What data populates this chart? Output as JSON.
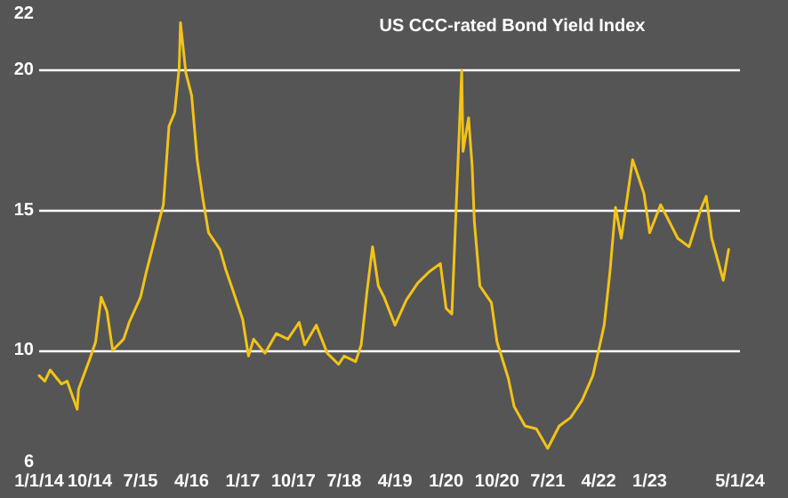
{
  "chart_data": {
    "type": "line",
    "title": "US CCC-rated Bond Yield Index",
    "x": [
      "2014-01",
      "2014-02",
      "2014-03",
      "2014-05",
      "2014-06",
      "2014-07-25",
      "2014-08",
      "2014-10",
      "2014-11",
      "2014-12",
      "2015-01",
      "2015-02",
      "2015-04",
      "2015-05",
      "2015-07",
      "2015-08",
      "2015-09",
      "2015-10",
      "2015-11",
      "2015-12",
      "2016-01",
      "2016-01-25",
      "2016-02",
      "2016-03",
      "2016-04",
      "2016-05",
      "2016-06",
      "2016-07",
      "2016-09",
      "2016-10",
      "2016-11",
      "2017-01",
      "2017-02",
      "2017-03",
      "2017-05",
      "2017-07",
      "2017-09",
      "2017-11",
      "2017-12",
      "2018-02",
      "2018-04",
      "2018-06",
      "2018-07",
      "2018-09",
      "2018-10",
      "2018-11",
      "2018-12",
      "2019-01",
      "2019-02",
      "2019-04",
      "2019-06",
      "2019-08",
      "2019-10",
      "2019-12",
      "2020-01",
      "2020-02",
      "2020-03-25",
      "2020-04",
      "2020-05",
      "2020-05-20",
      "2020-06",
      "2020-07",
      "2020-09",
      "2020-10",
      "2020-12",
      "2021-01",
      "2021-03",
      "2021-05",
      "2021-07",
      "2021-09",
      "2021-11",
      "2022-01",
      "2022-03",
      "2022-04",
      "2022-05",
      "2022-06",
      "2022-07",
      "2022-08",
      "2022-09",
      "2022-10",
      "2022-11",
      "2022-12",
      "2023-01",
      "2023-03",
      "2023-04",
      "2023-06",
      "2023-08",
      "2023-10",
      "2023-11",
      "2023-12",
      "2024-02",
      "2024-03"
    ],
    "series": [
      {
        "color": "#f2c318",
        "values": [
          9.1,
          8.9,
          9.3,
          8.8,
          8.9,
          7.9,
          8.6,
          9.7,
          10.3,
          11.9,
          11.4,
          10.0,
          10.4,
          11.0,
          11.9,
          12.8,
          13.6,
          14.4,
          15.2,
          18.0,
          18.5,
          20.1,
          21.7,
          19.9,
          19.1,
          16.8,
          15.4,
          14.2,
          13.6,
          12.9,
          12.3,
          11.1,
          9.8,
          10.4,
          9.9,
          10.6,
          10.4,
          11.0,
          10.2,
          10.9,
          9.9,
          9.5,
          9.8,
          9.6,
          10.2,
          12.1,
          13.7,
          12.3,
          11.9,
          10.9,
          11.8,
          12.4,
          12.8,
          13.1,
          11.5,
          11.3,
          20.0,
          17.1,
          18.3,
          16.6,
          14.6,
          12.3,
          11.7,
          10.3,
          9.0,
          8.0,
          7.3,
          7.2,
          6.5,
          7.3,
          7.6,
          8.2,
          9.1,
          10.0,
          10.9,
          12.8,
          15.1,
          14.0,
          15.4,
          16.8,
          16.2,
          15.6,
          14.2,
          15.2,
          14.8,
          14.0,
          13.7,
          15.0,
          15.5,
          14.0,
          12.5,
          13.6
        ]
      }
    ],
    "xlim": [
      "2014-01-01",
      "2024-05-01"
    ],
    "xticks": [
      {
        "value": "2014-01-01",
        "label": "1/1/14"
      },
      {
        "value": "2014-10-01",
        "label": "10/14"
      },
      {
        "value": "2015-07-01",
        "label": "7/15"
      },
      {
        "value": "2016-04-01",
        "label": "4/16"
      },
      {
        "value": "2017-01-01",
        "label": "1/17"
      },
      {
        "value": "2017-10-01",
        "label": "10/17"
      },
      {
        "value": "2018-07-01",
        "label": "7/18"
      },
      {
        "value": "2019-04-01",
        "label": "4/19"
      },
      {
        "value": "2020-01-01",
        "label": "1/20"
      },
      {
        "value": "2020-10-01",
        "label": "10/20"
      },
      {
        "value": "2021-07-01",
        "label": "7/21"
      },
      {
        "value": "2022-04-01",
        "label": "4/22"
      },
      {
        "value": "2023-01-01",
        "label": "1/23"
      },
      {
        "value": "2024-05-01",
        "label": "5/1/24"
      }
    ],
    "ylim": [
      6,
      22
    ],
    "yticks": [
      6,
      10,
      15,
      20,
      22
    ],
    "grid": "y",
    "marker": "none",
    "line_style": "solid"
  }
}
